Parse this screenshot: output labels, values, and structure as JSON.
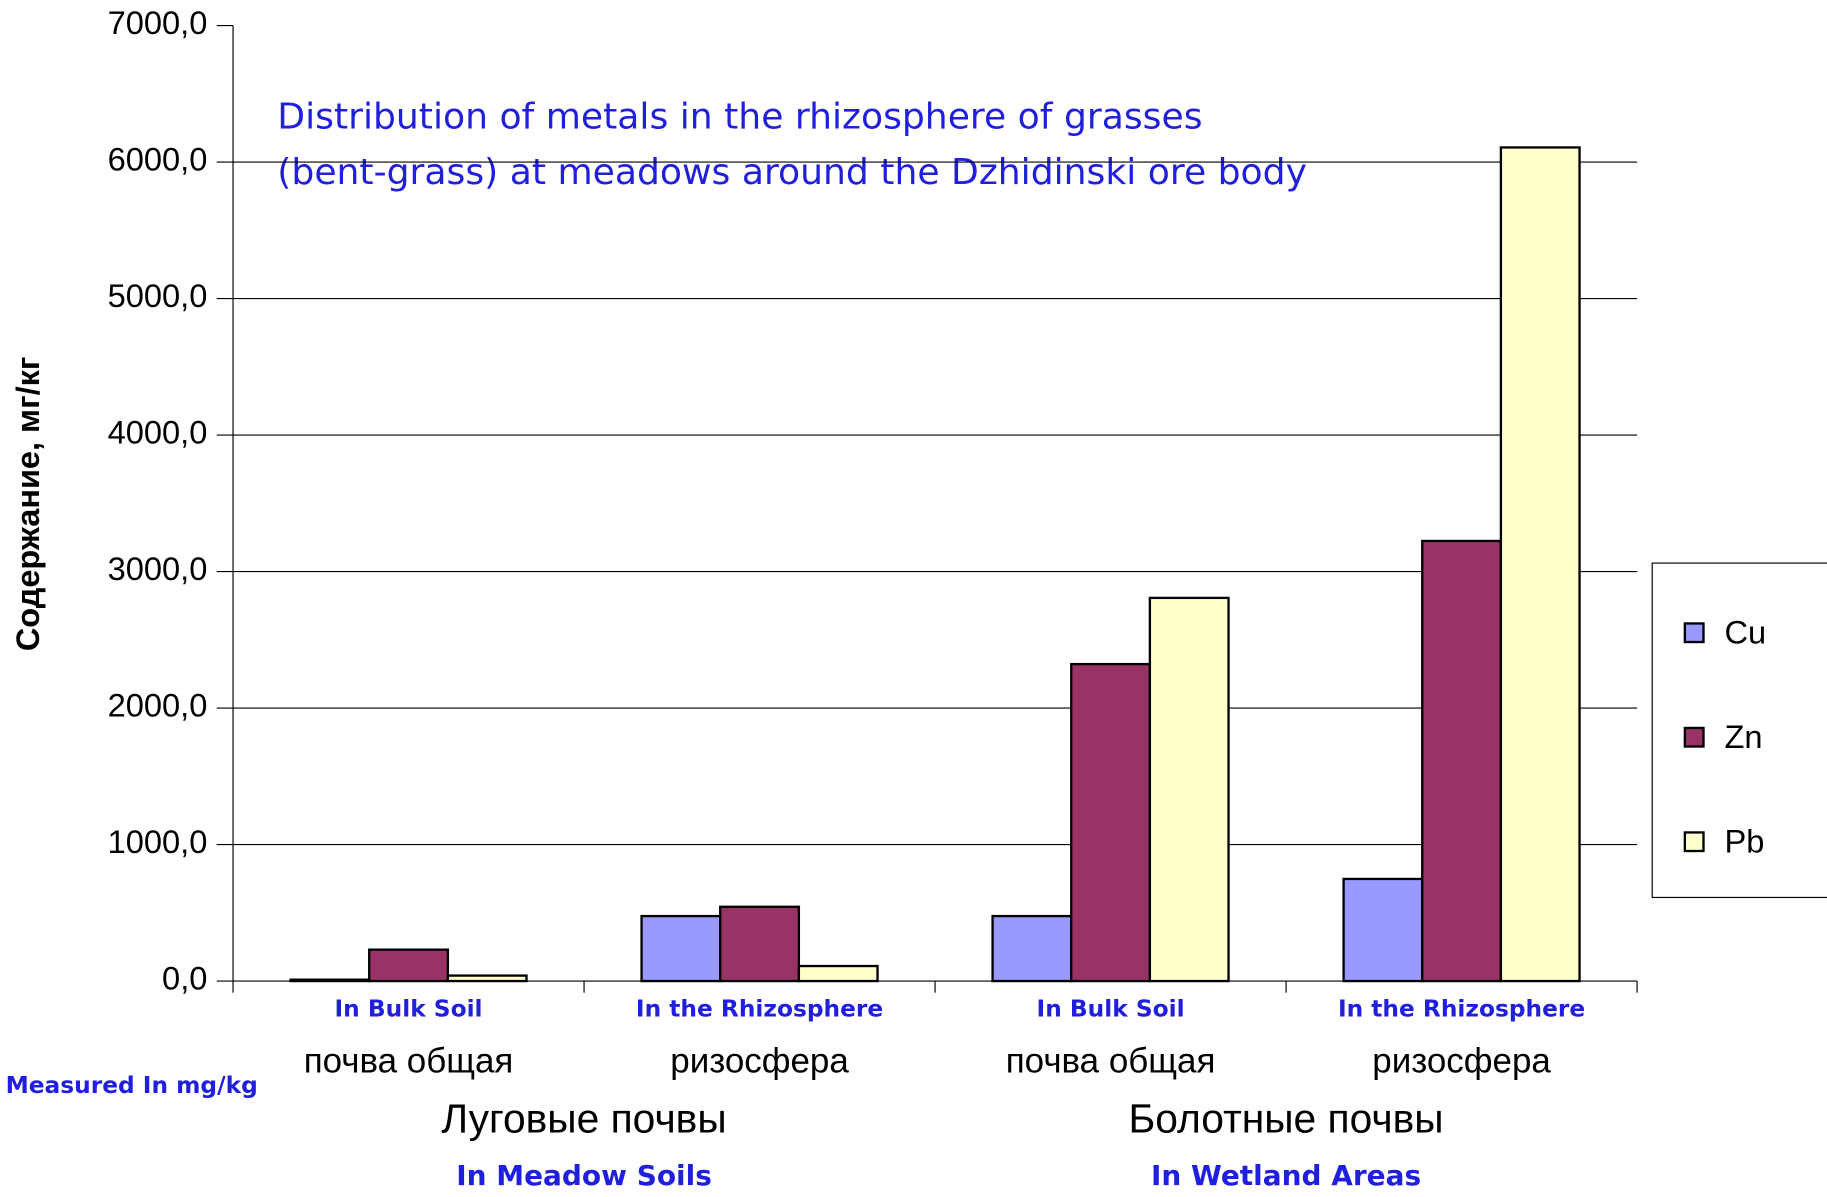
{
  "chart_data": {
    "type": "bar",
    "title": "Distribution of metals in the rhizosphere of grasses (bent-grass) at meadows around the Dzhidinski ore body",
    "y_label": "Содержание, мг/кг",
    "annotation": "Measured In mg/kg",
    "categories": [
      "почва общая",
      "ризосфера",
      "почва общая",
      "ризосфера"
    ],
    "category_labels_en": [
      "In Bulk Soil",
      "In the Rhizosphere",
      "In Bulk Soil",
      "In the Rhizosphere"
    ],
    "groups": [
      {
        "label": "Луговые почвы",
        "label_en": "In Meadow Soils"
      },
      {
        "label": "Болотные почвы",
        "label_en": "In Wetland Areas"
      }
    ],
    "series": [
      {
        "name": "Cu",
        "color": "#9999ff",
        "values": [
          10,
          476,
          476,
          748
        ]
      },
      {
        "name": "Zn",
        "color": "#993366",
        "values": [
          230,
          544,
          2322,
          3224
        ]
      },
      {
        "name": "Pb",
        "color": "#ffffcc",
        "values": [
          40,
          110,
          2807,
          6107
        ]
      }
    ],
    "ylim": [
      0,
      7000
    ],
    "yticks": [
      {
        "value": 0,
        "label": "0,0"
      },
      {
        "value": 1000,
        "label": "1000,0"
      },
      {
        "value": 2000,
        "label": "2000,0"
      },
      {
        "value": 3000,
        "label": "3000,0"
      },
      {
        "value": 4000,
        "label": "4000,0"
      },
      {
        "value": 5000,
        "label": "5000,0"
      },
      {
        "value": 6000,
        "label": "6000,0"
      },
      {
        "value": 7000,
        "label": "7000,0"
      }
    ],
    "grid": true,
    "legend": "right"
  }
}
